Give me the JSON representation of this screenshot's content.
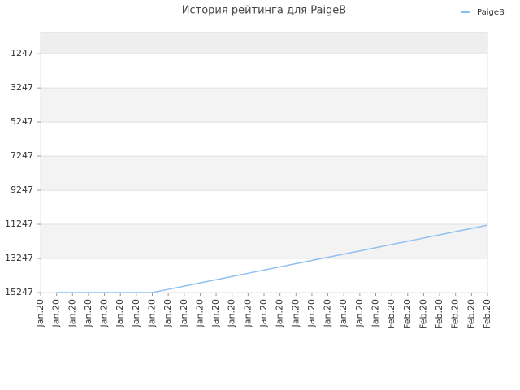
{
  "chart_data": {
    "type": "line",
    "title": "История рейтинга для PaigeB",
    "categories": [
      "Jan.20",
      "Jan.20",
      "Jan.20",
      "Jan.20",
      "Jan.20",
      "Jan.20",
      "Jan.20",
      "Jan.20",
      "Jan.20",
      "Jan.20",
      "Jan.20",
      "Jan.20",
      "Jan.20",
      "Jan.20",
      "Jan.20",
      "Jan.20",
      "Jan.20",
      "Jan.20",
      "Jan.20",
      "Jan.20",
      "Jan.20",
      "Jan.20",
      "Feb.20",
      "Feb.20",
      "Feb.20",
      "Feb.20",
      "Feb.20",
      "Feb.20",
      "Feb.20"
    ],
    "series": [
      {
        "name": "PaigeB",
        "color": "#90c0f0",
        "values": [
          null,
          15247,
          15247,
          15247,
          15247,
          15247,
          15247,
          15247,
          15059,
          14871,
          14683,
          14495,
          14307,
          14119,
          13931,
          13743,
          13555,
          13367,
          13179,
          12991,
          12803,
          12615,
          12427,
          12239,
          12051,
          11863,
          11675,
          11487,
          11299
        ]
      }
    ],
    "ylim": [
      15247,
      0
    ],
    "yticks": [
      1247,
      3247,
      5247,
      7247,
      9247,
      11247,
      13247,
      15247
    ],
    "grid": true,
    "legend": "top-right"
  }
}
